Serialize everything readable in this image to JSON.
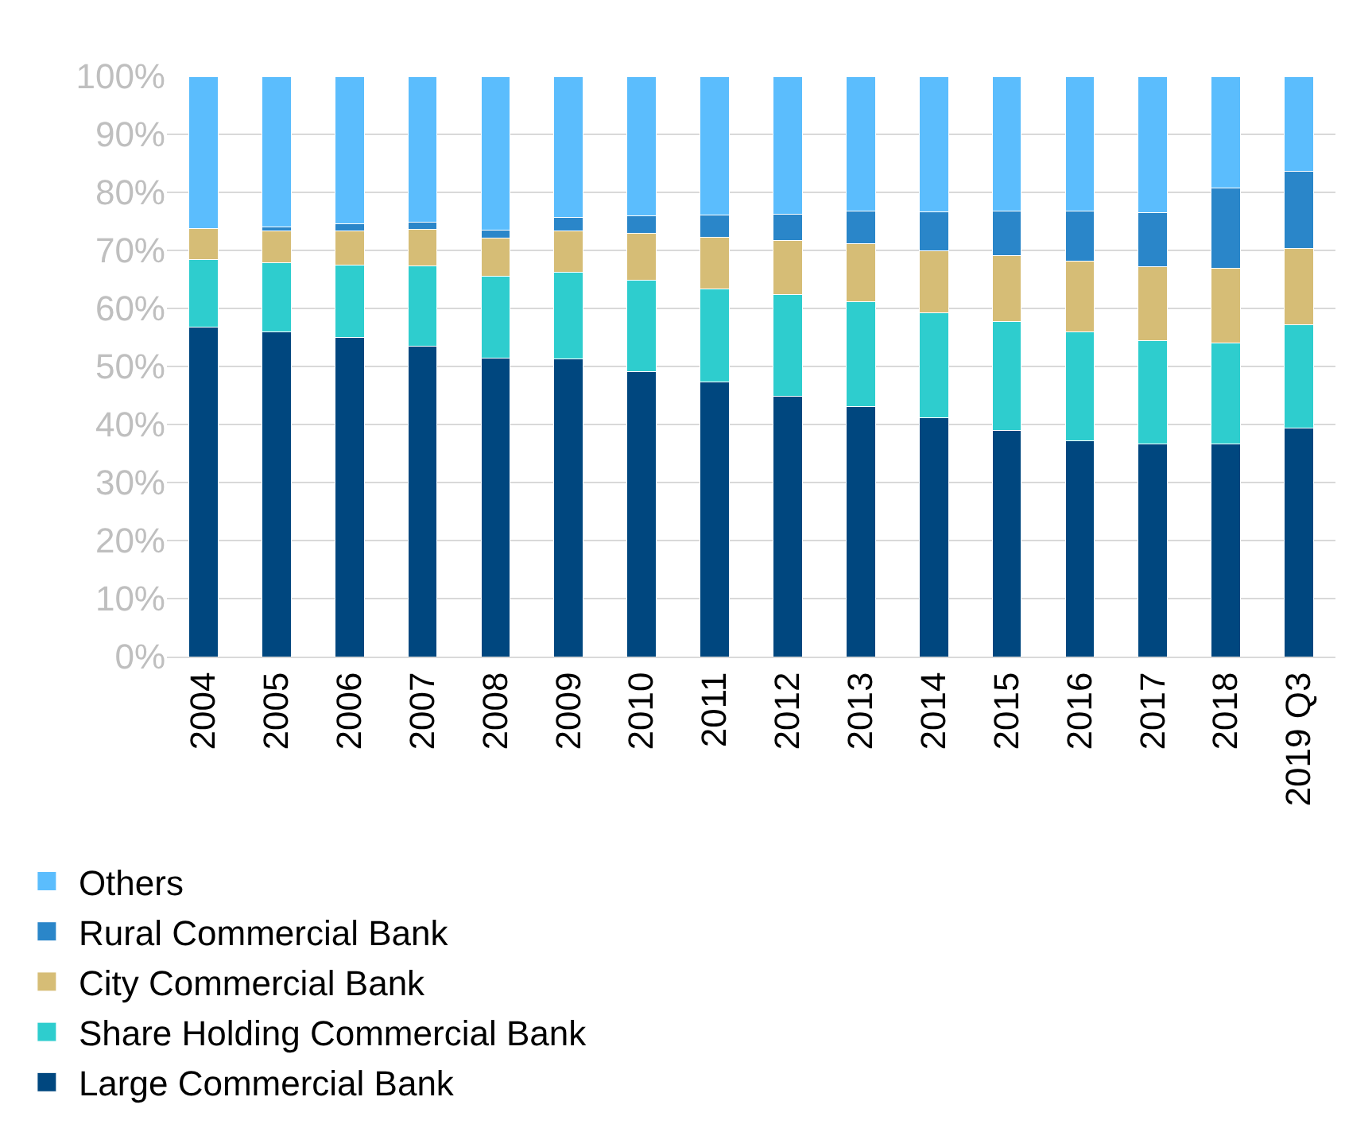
{
  "chart_data": {
    "type": "bar",
    "stacked": true,
    "categories": [
      "2004",
      "2005",
      "2006",
      "2007",
      "2008",
      "2009",
      "2010",
      "2011",
      "2012",
      "2013",
      "2014",
      "2015",
      "2016",
      "2017",
      "2018",
      "2019 Q3"
    ],
    "series": [
      {
        "name": "Large Commercial Bank",
        "color": "#00477f",
        "values": [
          56.8,
          55.9,
          55.0,
          53.5,
          51.5,
          51.3,
          49.1,
          47.3,
          44.9,
          43.1,
          41.1,
          39.0,
          37.2,
          36.7,
          36.6,
          39.4
        ]
      },
      {
        "name": "Share Holding Commercial Bank",
        "color": "#2ecdce",
        "values": [
          11.6,
          12.0,
          12.5,
          13.8,
          14.0,
          14.9,
          15.7,
          16.1,
          17.5,
          18.0,
          18.2,
          18.7,
          18.7,
          17.7,
          17.5,
          17.8
        ]
      },
      {
        "name": "City Commercial Bank",
        "color": "#d6bd76",
        "values": [
          5.4,
          5.5,
          5.9,
          6.3,
          6.6,
          7.1,
          8.2,
          8.9,
          9.3,
          10.0,
          10.6,
          11.4,
          12.2,
          12.8,
          12.8,
          13.1
        ]
      },
      {
        "name": "Rural Commercial Bank",
        "color": "#2a86c9",
        "values": [
          0,
          0.7,
          1.2,
          1.2,
          1.4,
          2.4,
          2.9,
          3.8,
          4.6,
          5.7,
          6.7,
          7.7,
          8.7,
          9.3,
          13.8,
          13.3
        ]
      },
      {
        "name": "Others",
        "color": "#5bbdfd",
        "values": [
          26.2,
          25.9,
          25.4,
          25.2,
          26.5,
          24.3,
          24.1,
          23.9,
          23.7,
          23.2,
          23.4,
          23.2,
          23.2,
          23.5,
          19.3,
          16.4
        ]
      }
    ],
    "ylim": [
      0,
      100
    ],
    "yticks": [
      {
        "value": 0,
        "label": "0%"
      },
      {
        "value": 10,
        "label": "10%"
      },
      {
        "value": 20,
        "label": "20%"
      },
      {
        "value": 30,
        "label": "30%"
      },
      {
        "value": 40,
        "label": "40%"
      },
      {
        "value": 50,
        "label": "50%"
      },
      {
        "value": 60,
        "label": "60%"
      },
      {
        "value": 70,
        "label": "70%"
      },
      {
        "value": 80,
        "label": "80%"
      },
      {
        "value": 90,
        "label": "90%"
      },
      {
        "value": 100,
        "label": "100%"
      }
    ],
    "grid": "y",
    "legend": "bottom"
  }
}
